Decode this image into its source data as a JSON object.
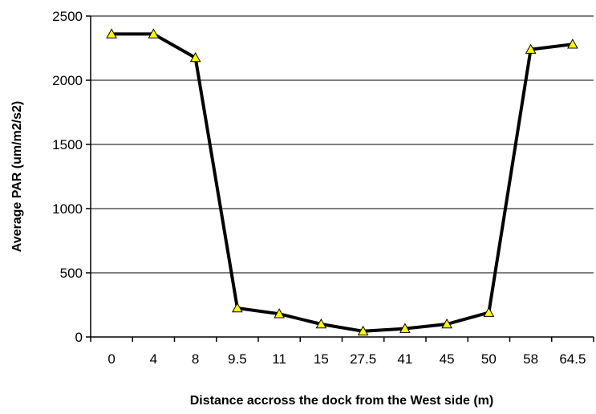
{
  "chart_data": {
    "type": "line",
    "title": "",
    "xlabel": "Distance accross the dock from the West side (m)",
    "ylabel": "Average PAR (um/m2/s2)",
    "categories": [
      "0",
      "4",
      "8",
      "9.5",
      "11",
      "15",
      "27.5",
      "41",
      "45",
      "50",
      "58",
      "64.5"
    ],
    "series": [
      {
        "values": [
          2360,
          2360,
          2175,
          225,
          180,
          100,
          45,
          65,
          100,
          190,
          2240,
          2280
        ]
      }
    ],
    "ylim": [
      0,
      2500
    ],
    "yticks": [
      0,
      500,
      1000,
      1500,
      2000,
      2500
    ],
    "grid": "horizontal",
    "legend": "none",
    "colors": {
      "line": "#000000",
      "marker_fill": "#ffff00",
      "marker_stroke": "#000000",
      "grid": "#000000"
    }
  }
}
